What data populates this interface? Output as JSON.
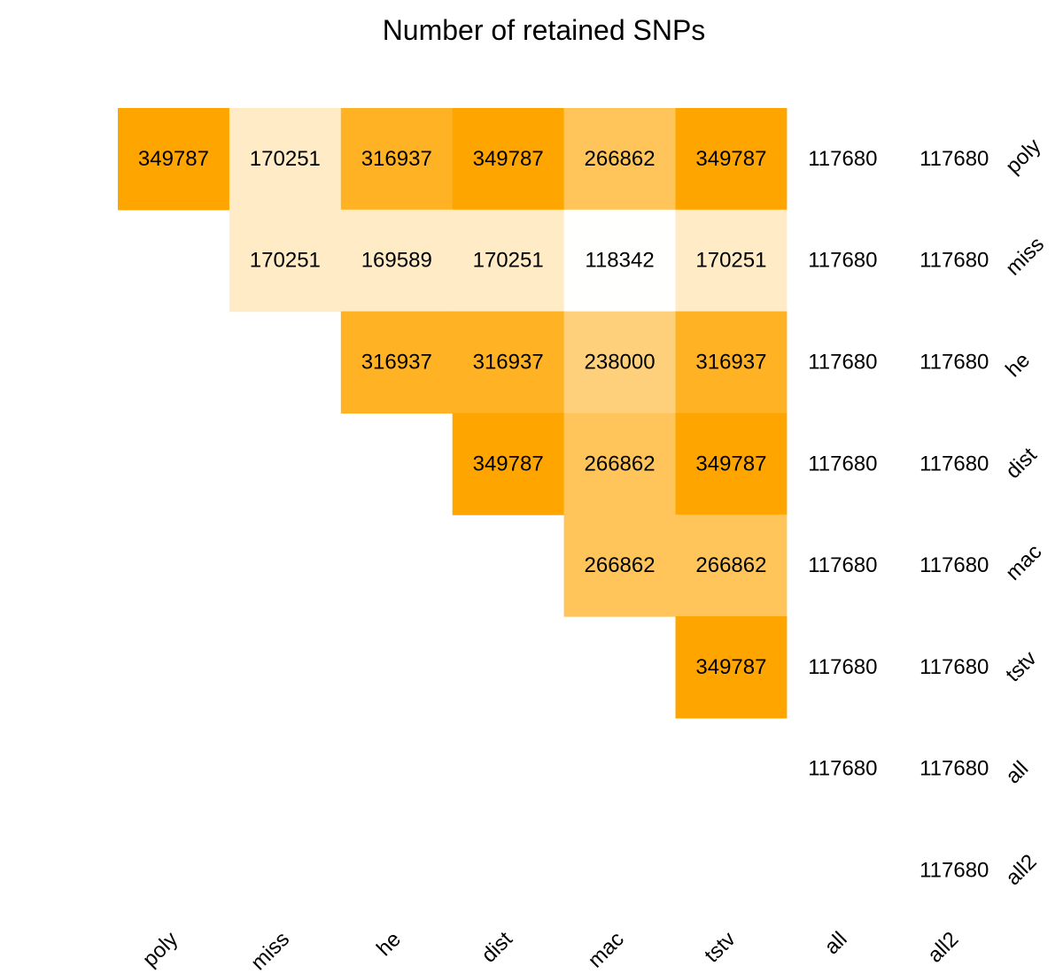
{
  "chart_data": {
    "type": "heatmap",
    "title": "Number of retained SNPs",
    "x_labels": [
      "poly",
      "miss",
      "he",
      "dist",
      "mac",
      "tstv",
      "all",
      "all2"
    ],
    "y_labels": [
      "poly",
      "miss",
      "he",
      "dist",
      "mac",
      "tstv",
      "all",
      "all2"
    ],
    "colorscale": {
      "low": "#ffffff",
      "high": "#ffa500",
      "min": 117680,
      "max": 349787
    },
    "cells": [
      {
        "row": 0,
        "col": 0,
        "value": 349787
      },
      {
        "row": 0,
        "col": 1,
        "value": 170251
      },
      {
        "row": 0,
        "col": 2,
        "value": 316937
      },
      {
        "row": 0,
        "col": 3,
        "value": 349787
      },
      {
        "row": 0,
        "col": 4,
        "value": 266862
      },
      {
        "row": 0,
        "col": 5,
        "value": 349787
      },
      {
        "row": 0,
        "col": 6,
        "value": 117680
      },
      {
        "row": 0,
        "col": 7,
        "value": 117680
      },
      {
        "row": 1,
        "col": 1,
        "value": 170251
      },
      {
        "row": 1,
        "col": 2,
        "value": 169589
      },
      {
        "row": 1,
        "col": 3,
        "value": 170251
      },
      {
        "row": 1,
        "col": 4,
        "value": 118342
      },
      {
        "row": 1,
        "col": 5,
        "value": 170251
      },
      {
        "row": 1,
        "col": 6,
        "value": 117680
      },
      {
        "row": 1,
        "col": 7,
        "value": 117680
      },
      {
        "row": 2,
        "col": 2,
        "value": 316937
      },
      {
        "row": 2,
        "col": 3,
        "value": 316937
      },
      {
        "row": 2,
        "col": 4,
        "value": 238000
      },
      {
        "row": 2,
        "col": 5,
        "value": 316937
      },
      {
        "row": 2,
        "col": 6,
        "value": 117680
      },
      {
        "row": 2,
        "col": 7,
        "value": 117680
      },
      {
        "row": 3,
        "col": 3,
        "value": 349787
      },
      {
        "row": 3,
        "col": 4,
        "value": 266862
      },
      {
        "row": 3,
        "col": 5,
        "value": 349787
      },
      {
        "row": 3,
        "col": 6,
        "value": 117680
      },
      {
        "row": 3,
        "col": 7,
        "value": 117680
      },
      {
        "row": 4,
        "col": 4,
        "value": 266862
      },
      {
        "row": 4,
        "col": 5,
        "value": 266862
      },
      {
        "row": 4,
        "col": 6,
        "value": 117680
      },
      {
        "row": 4,
        "col": 7,
        "value": 117680
      },
      {
        "row": 5,
        "col": 5,
        "value": 349787
      },
      {
        "row": 5,
        "col": 6,
        "value": 117680
      },
      {
        "row": 5,
        "col": 7,
        "value": 117680
      },
      {
        "row": 6,
        "col": 6,
        "value": 117680
      },
      {
        "row": 6,
        "col": 7,
        "value": 117680
      },
      {
        "row": 7,
        "col": 7,
        "value": 117680
      }
    ]
  }
}
